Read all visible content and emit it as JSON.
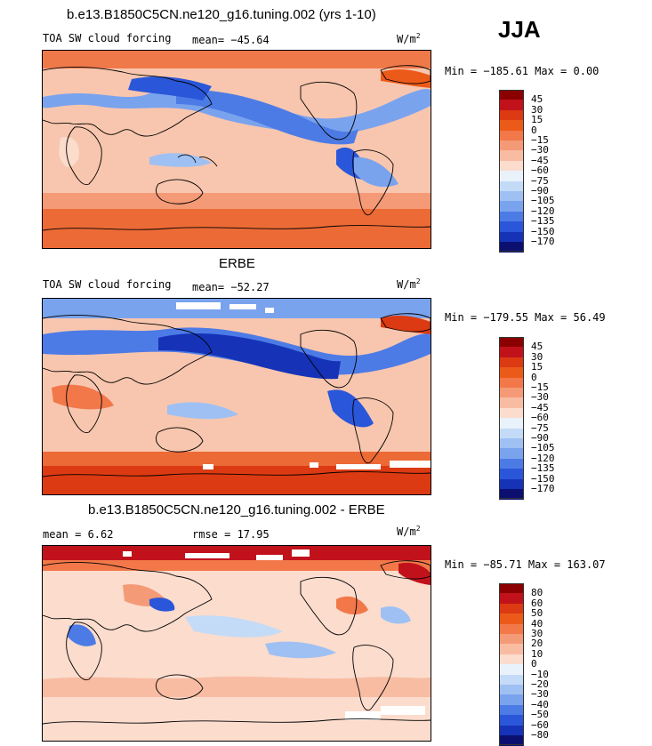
{
  "season": "JJA",
  "panels": [
    {
      "title": "b.e13.B1850C5CN.ne120_g16.tuning.002 (yrs 1-10)",
      "field": "TOA SW cloud forcing",
      "stat1": "mean= −45.64",
      "stat2": "",
      "units": "W/m",
      "units_exp": "2",
      "minmax": "Min = −185.61 Max =   0.00",
      "colorbar": {
        "levels": [
          "45",
          "30",
          "15",
          "0",
          "−15",
          "−30",
          "−45",
          "−60",
          "−75",
          "−90",
          "−105",
          "−120",
          "−135",
          "−150",
          "−170"
        ],
        "colors": [
          "#8b0000",
          "#c1121c",
          "#dc3a12",
          "#ec5a1a",
          "#f2784a",
          "#f59a76",
          "#f8bca3",
          "#fbdccd",
          "#e9f1fb",
          "#c4dbf7",
          "#9fc0f3",
          "#7aa3ee",
          "#4d7be6",
          "#2a56d9",
          "#1633b8",
          "#0b1070"
        ]
      }
    },
    {
      "title": "ERBE",
      "field": "TOA SW cloud forcing",
      "stat1": "mean= −52.27",
      "stat2": "",
      "units": "W/m",
      "units_exp": "2",
      "minmax": "Min = −179.55 Max =  56.49",
      "colorbar": {
        "levels": [
          "45",
          "30",
          "15",
          "0",
          "−15",
          "−30",
          "−45",
          "−60",
          "−75",
          "−90",
          "−105",
          "−120",
          "−135",
          "−150",
          "−170"
        ],
        "colors": [
          "#8b0000",
          "#c1121c",
          "#dc3a12",
          "#ec5a1a",
          "#f2784a",
          "#f59a76",
          "#f8bca3",
          "#fbdccd",
          "#e9f1fb",
          "#c4dbf7",
          "#9fc0f3",
          "#7aa3ee",
          "#4d7be6",
          "#2a56d9",
          "#1633b8",
          "#0b1070"
        ]
      }
    },
    {
      "title": "b.e13.B1850C5CN.ne120_g16.tuning.002 - ERBE",
      "field": "",
      "stat1": "mean =    6.62",
      "stat2": "rmse =   17.95",
      "units": "W/m",
      "units_exp": "2",
      "minmax": "Min = −85.71 Max = 163.07",
      "colorbar": {
        "levels": [
          "80",
          "60",
          "50",
          "40",
          "30",
          "20",
          "10",
          "0",
          "−10",
          "−20",
          "−30",
          "−40",
          "−50",
          "−60",
          "−80"
        ],
        "colors": [
          "#8b0000",
          "#c1121c",
          "#dc3a12",
          "#ec5a1a",
          "#f2784a",
          "#f59a76",
          "#f8bca3",
          "#fbdccd",
          "#e9f1fb",
          "#c4dbf7",
          "#9fc0f3",
          "#7aa3ee",
          "#4d7be6",
          "#2a56d9",
          "#1633b8",
          "#0b1070"
        ]
      }
    }
  ]
}
